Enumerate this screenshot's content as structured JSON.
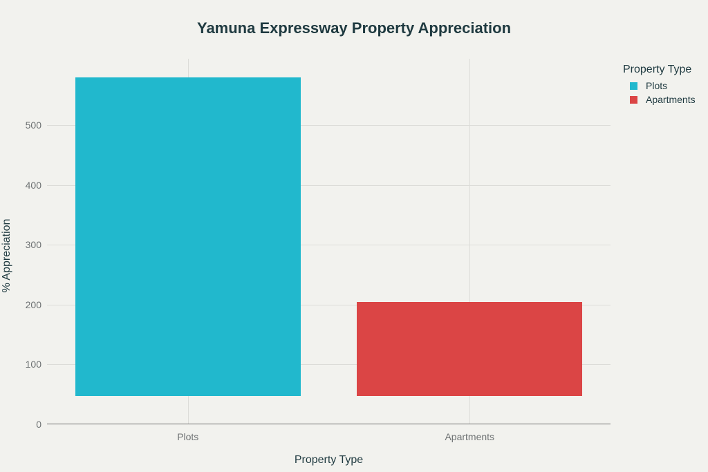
{
  "chart_data": {
    "type": "bar",
    "title": "Yamuna Expressway Property Appreciation",
    "xlabel": "Property Type",
    "ylabel": "% Appreciation",
    "categories": [
      "Plots",
      "Apartments"
    ],
    "base": [
      47,
      47
    ],
    "values": [
      580,
      205
    ],
    "colors": [
      "#21b8cd",
      "#db4545"
    ],
    "ylim": [
      0,
      611
    ],
    "yticks": [
      0,
      100,
      200,
      300,
      400,
      500
    ],
    "grid": true,
    "legend": {
      "title": "Property Type",
      "position": "right",
      "entries": [
        {
          "label": "Plots",
          "color": "#21b8cd"
        },
        {
          "label": "Apartments",
          "color": "#db4545"
        }
      ]
    }
  }
}
